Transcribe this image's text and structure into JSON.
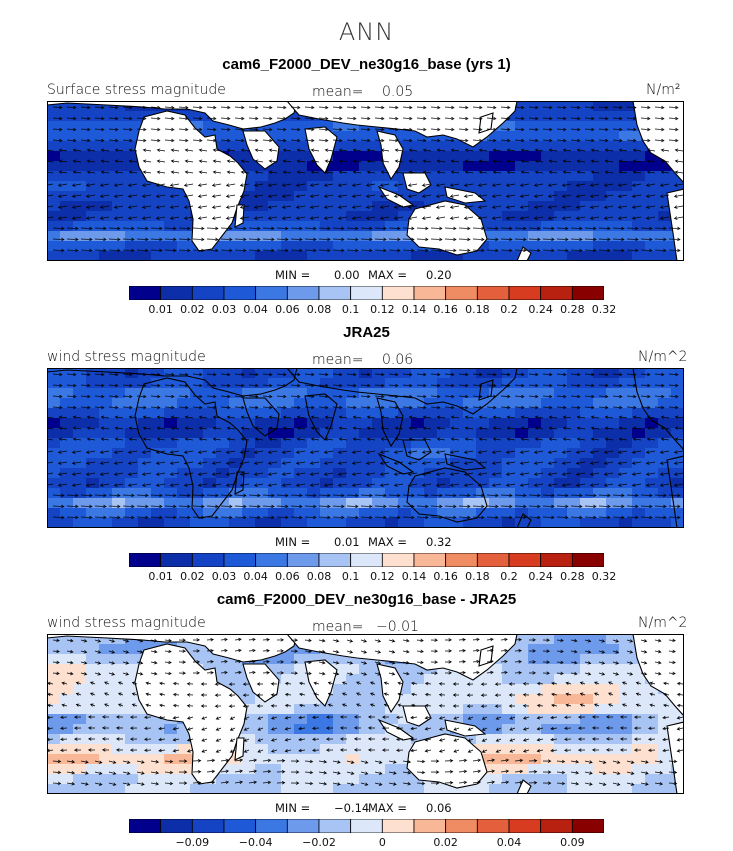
{
  "suptitle": "ANN",
  "chart_data": [
    {
      "type": "heatmap",
      "title": "cam6_F2000_DEV_ne30g16_base (yrs 1)",
      "variable_label": "Surface stress magnitude",
      "mean_label": "mean=",
      "mean_value": "0.05",
      "units": "N/m²",
      "min_label": "MIN =",
      "min_value": "0.00",
      "max_label": "MAX =",
      "max_value": "0.20",
      "colorbar": {
        "levels": [
          "0.01",
          "0.02",
          "0.03",
          "0.04",
          "0.06",
          "0.08",
          "0.1",
          "0.12",
          "0.14",
          "0.16",
          "0.18",
          "0.2",
          "0.24",
          "0.28",
          "0.32"
        ],
        "colors": [
          "#00008c",
          "#0c2ea8",
          "#1444c4",
          "#1e5ad8",
          "#3c78e4",
          "#6e9aec",
          "#a8c4f4",
          "#dce8fa",
          "#fde0d0",
          "#f8b898",
          "#f08c64",
          "#e4603c",
          "#d83c20",
          "#b82010",
          "#880000"
        ]
      },
      "field": "surface_stress",
      "field_range": [
        0,
        0.32
      ]
    },
    {
      "type": "heatmap",
      "title": "JRA25",
      "variable_label": "wind stress magnitude",
      "mean_label": "mean=",
      "mean_value": "0.06",
      "units": "N/m^2",
      "min_label": "MIN =",
      "min_value": "0.01",
      "max_label": "MAX =",
      "max_value": "0.32",
      "colorbar": {
        "levels": [
          "0.01",
          "0.02",
          "0.03",
          "0.04",
          "0.06",
          "0.08",
          "0.1",
          "0.12",
          "0.14",
          "0.16",
          "0.18",
          "0.2",
          "0.24",
          "0.28",
          "0.32"
        ],
        "colors": [
          "#00008c",
          "#0c2ea8",
          "#1444c4",
          "#1e5ad8",
          "#3c78e4",
          "#6e9aec",
          "#a8c4f4",
          "#dce8fa",
          "#fde0d0",
          "#f8b898",
          "#f08c64",
          "#e4603c",
          "#d83c20",
          "#b82010",
          "#880000"
        ]
      },
      "field": "wind_stress",
      "field_range": [
        0,
        0.32
      ]
    },
    {
      "type": "heatmap",
      "title": "cam6_F2000_DEV_ne30g16_base - JRA25",
      "variable_label": "wind stress magnitude",
      "mean_label": "mean=",
      "mean_value": "−0.01",
      "units": "N/m^2",
      "min_label": "MIN =",
      "min_value": "−0.14",
      "max_label": "MAX =",
      "max_value": "0.06",
      "colorbar": {
        "levels": [
          "",
          "−0.09",
          "",
          "−0.04",
          "",
          "−0.02",
          "",
          "0",
          "",
          "0.02",
          "",
          "0.04",
          "",
          "0.09",
          ""
        ],
        "colors": [
          "#00008c",
          "#0c2ea8",
          "#1444c4",
          "#1e5ad8",
          "#3c78e4",
          "#6e9aec",
          "#a8c4f4",
          "#dce8fa",
          "#fde0d0",
          "#f8b898",
          "#f08c64",
          "#e4603c",
          "#d83c20",
          "#b82010",
          "#880000"
        ]
      },
      "field": "difference",
      "field_range": [
        -0.14,
        0.14
      ]
    }
  ]
}
